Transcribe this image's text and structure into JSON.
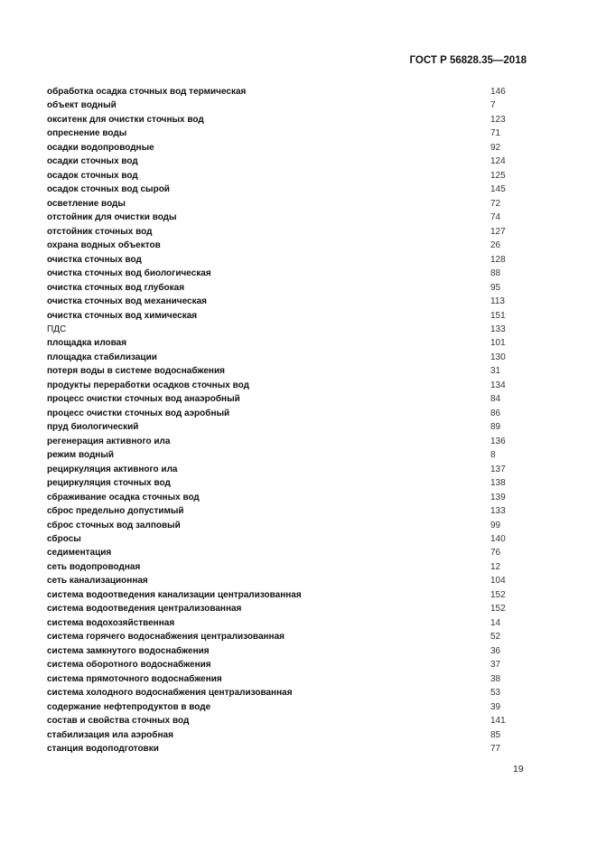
{
  "header": {
    "standard": "ГОСТ Р 56828.35—2018"
  },
  "index": [
    {
      "term": "обработка осадка сточных вод термическая",
      "page": "146"
    },
    {
      "term": "объект водный",
      "page": "7"
    },
    {
      "term": "окситенк для очистки сточных вод",
      "page": "123"
    },
    {
      "term": "опреснение воды",
      "page": "71"
    },
    {
      "term": "осадки водопроводные",
      "page": "92"
    },
    {
      "term": "осадки сточных вод",
      "page": "124"
    },
    {
      "term": "осадок сточных вод",
      "page": "125"
    },
    {
      "term": "осадок сточных вод сырой",
      "page": "145"
    },
    {
      "term": "осветление воды",
      "page": "72"
    },
    {
      "term": "отстойник для очистки воды",
      "page": "74"
    },
    {
      "term": "отстойник сточных вод",
      "page": "127"
    },
    {
      "term": "охрана водных объектов",
      "page": "26"
    },
    {
      "term": "очистка сточных вод",
      "page": "128"
    },
    {
      "term": "очистка сточных вод биологическая",
      "page": "88"
    },
    {
      "term": "очистка сточных вод глубокая",
      "page": "95"
    },
    {
      "term": "очистка сточных вод механическая",
      "page": "113"
    },
    {
      "term": "очистка сточных вод химическая",
      "page": "151"
    },
    {
      "term": "ПДС",
      "page": "133",
      "bold": false
    },
    {
      "term": "площадка иловая",
      "page": "101"
    },
    {
      "term": "площадка стабилизации",
      "page": "130"
    },
    {
      "term": "потеря воды в системе водоснабжения",
      "page": "31"
    },
    {
      "term": "продукты переработки осадков сточных вод",
      "page": "134"
    },
    {
      "term": "процесс очистки сточных вод анаэробный",
      "page": "84"
    },
    {
      "term": "процесс очистки сточных вод аэробный",
      "page": "86"
    },
    {
      "term": "пруд биологический",
      "page": "89"
    },
    {
      "term": "регенерация активного ила",
      "page": "136"
    },
    {
      "term": "режим водный",
      "page": "8"
    },
    {
      "term": "рециркуляция активного ила",
      "page": "137"
    },
    {
      "term": "рециркуляция сточных вод",
      "page": "138"
    },
    {
      "term": "сбраживание осадка сточных вод",
      "page": "139"
    },
    {
      "term": "сброс предельно допустимый",
      "page": "133"
    },
    {
      "term": "сброс сточных вод залповый",
      "page": "99"
    },
    {
      "term": "сбросы",
      "page": "140"
    },
    {
      "term": "седиментация",
      "page": "76"
    },
    {
      "term": "сеть водопроводная",
      "page": "12"
    },
    {
      "term": "сеть канализационная",
      "page": "104"
    },
    {
      "term": "система водоотведения канализации централизованная",
      "page": "152"
    },
    {
      "term": "система водоотведения централизованная",
      "page": "152"
    },
    {
      "term": "система водохозяйственная",
      "page": "14"
    },
    {
      "term": "система горячего водоснабжения централизованная",
      "page": "52"
    },
    {
      "term": "система замкнутого водоснабжения",
      "page": "36"
    },
    {
      "term": "система оборотного водоснабжения",
      "page": "37"
    },
    {
      "term": "система прямоточного водоснабжения",
      "page": "38"
    },
    {
      "term": "система холодного водоснабжения централизованная",
      "page": "53"
    },
    {
      "term": "содержание нефтепродуктов в воде",
      "page": "39"
    },
    {
      "term": "состав и свойства сточных вод",
      "page": "141"
    },
    {
      "term": "стабилизация ила аэробная",
      "page": "85"
    },
    {
      "term": "станция водоподготовки",
      "page": "77"
    }
  ],
  "footer": {
    "page_number": "19"
  }
}
